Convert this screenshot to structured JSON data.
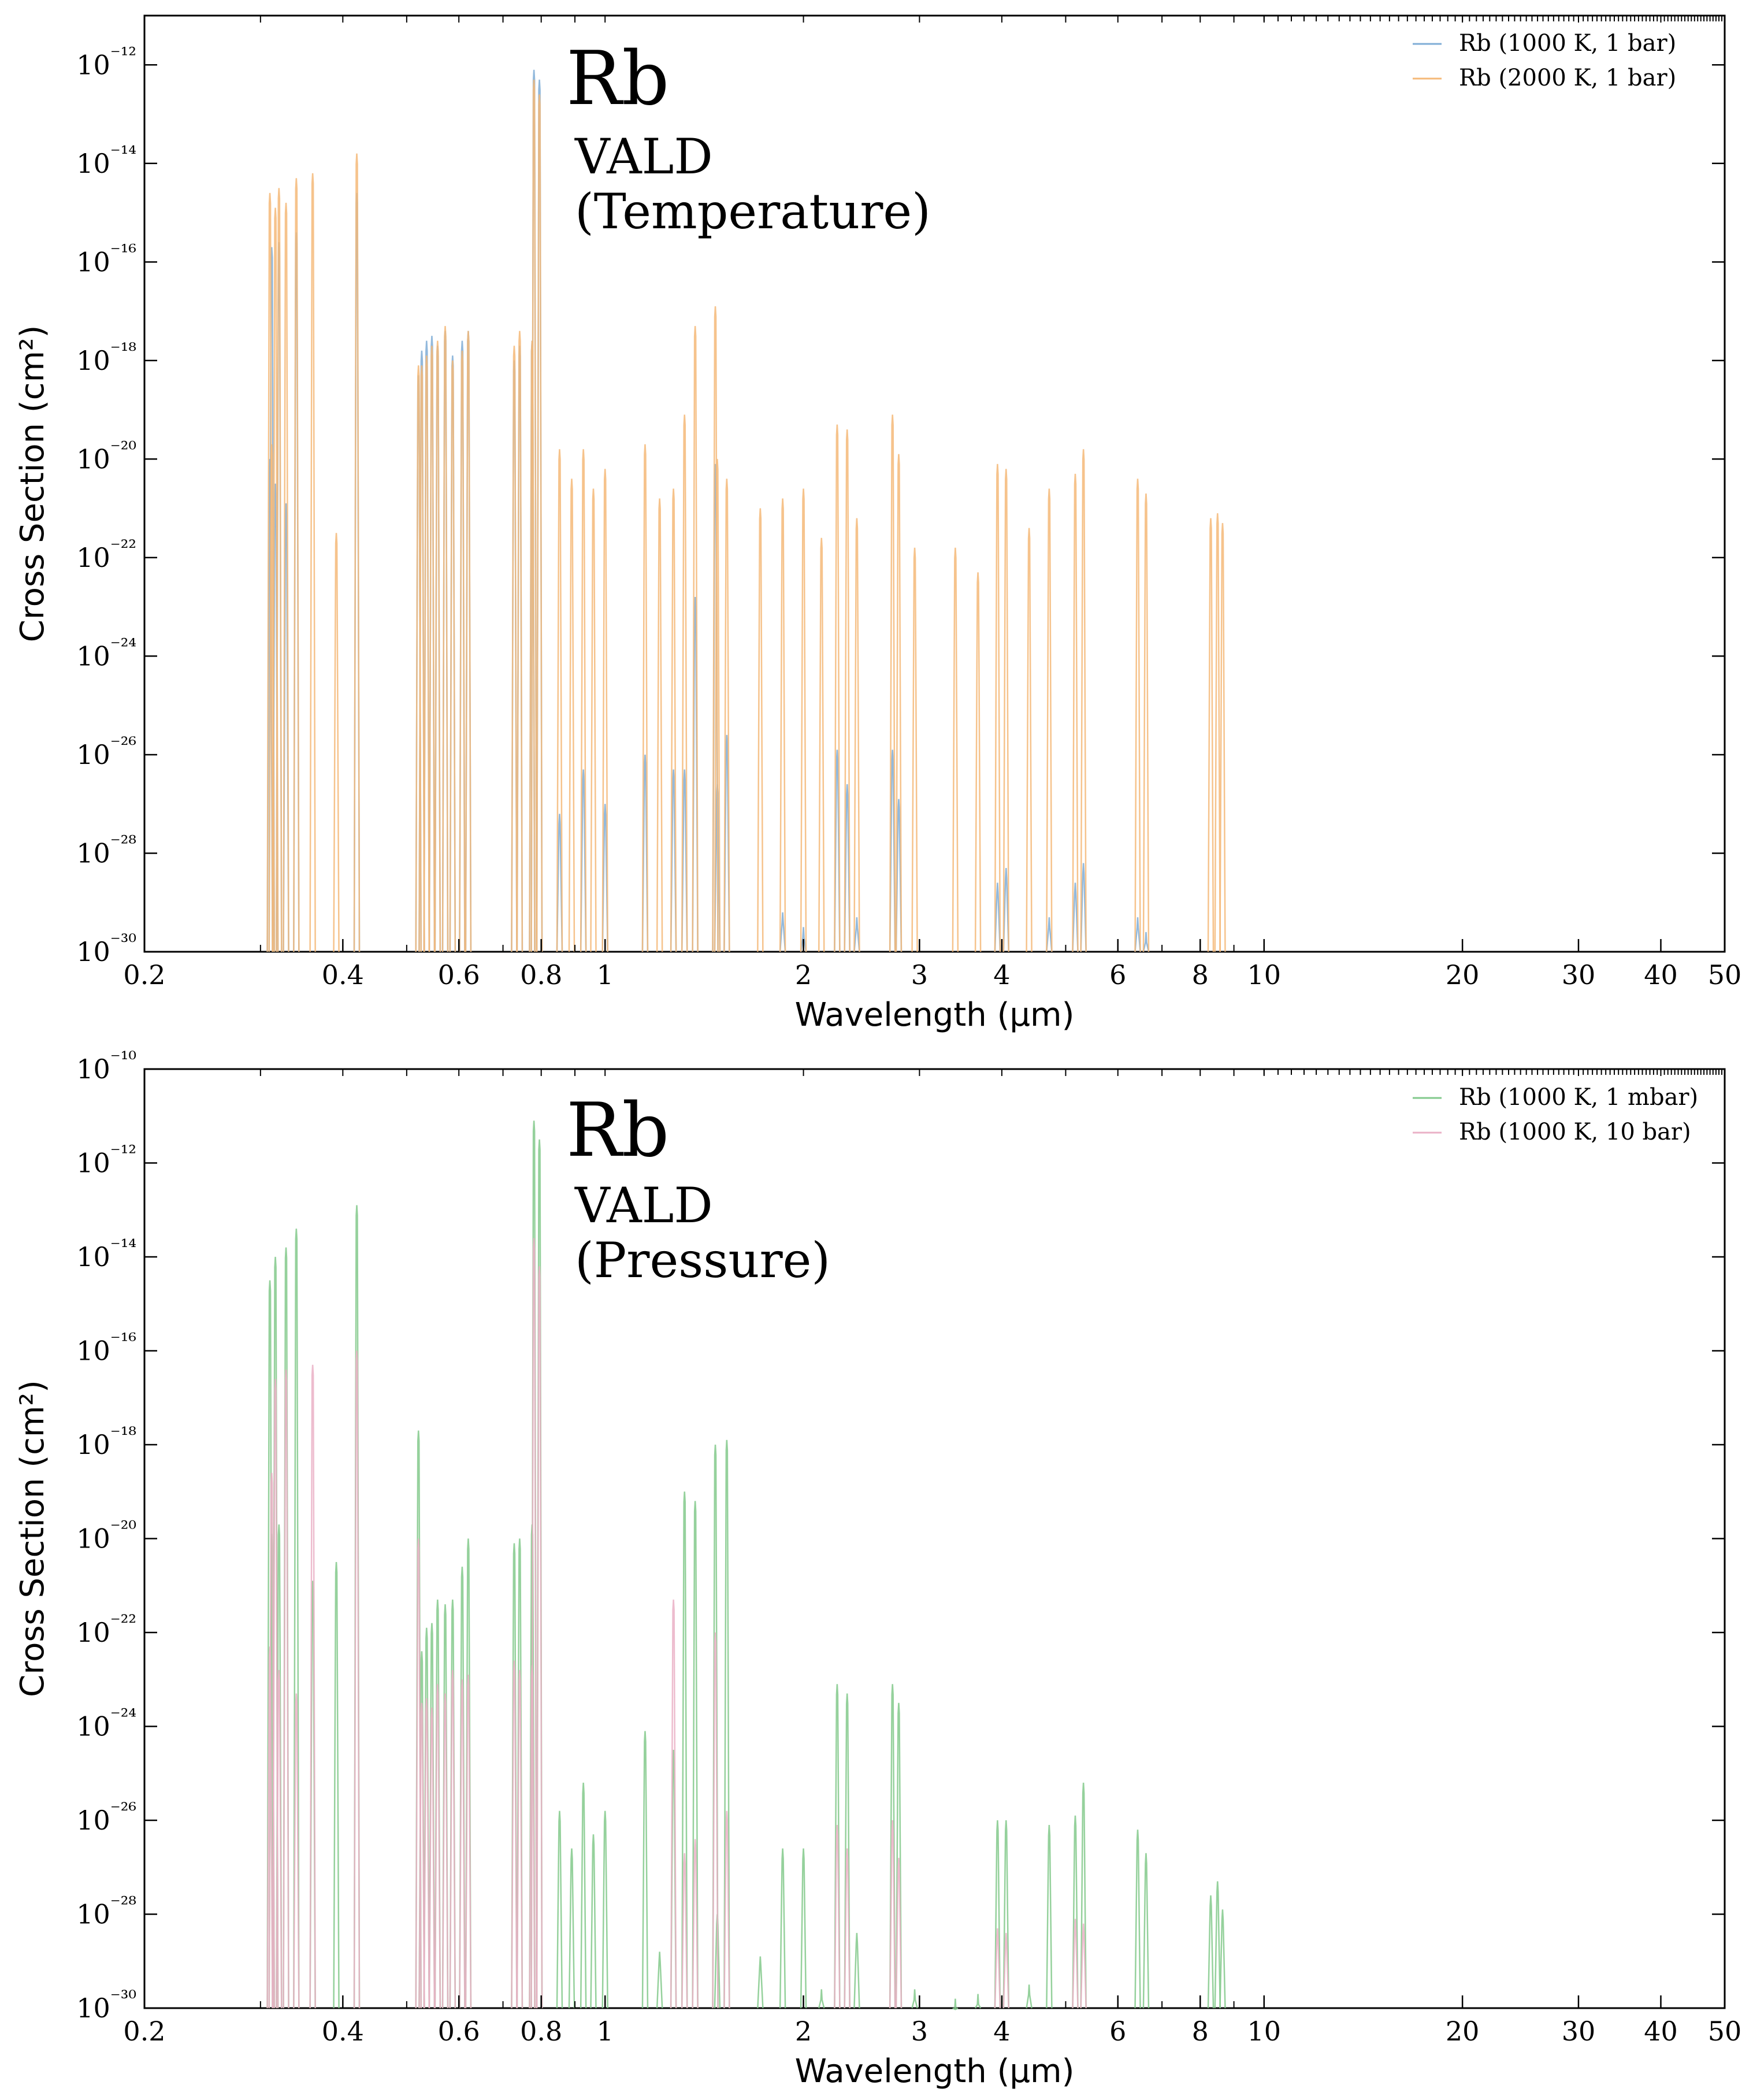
{
  "chart_data": [
    {
      "type": "line",
      "annotation": {
        "element": "Rb",
        "database": "VALD",
        "variation": "(Temperature)"
      },
      "xlabel": "Wavelength (μm)",
      "ylabel": "Cross Section (cm²)",
      "xscale": "log",
      "yscale": "log",
      "xlim": [
        0.2,
        50
      ],
      "ylim": [
        1e-30,
        1e-11
      ],
      "x_ticks": [
        "0.2",
        "0.4",
        "0.6",
        "0.8",
        "1",
        "2",
        "3",
        "4",
        "6",
        "8",
        "10",
        "20",
        "30",
        "40",
        "50"
      ],
      "y_ticks": [
        -30,
        -28,
        -26,
        -24,
        -22,
        -20,
        -18,
        -16,
        -14,
        -12
      ],
      "legend_position": "top-right",
      "grid": false,
      "series": [
        {
          "name": "Rb (1000 K, 1 bar)",
          "color": "#7fadd6",
          "lines": [
            [
              0.31,
              -20.0
            ],
            [
              0.312,
              -15.7
            ],
            [
              0.316,
              -20.5
            ],
            [
              0.32,
              -15.6
            ],
            [
              0.328,
              -20.9
            ],
            [
              0.34,
              -15.4
            ],
            [
              0.42,
              -14.6
            ],
            [
              0.521,
              -18.3
            ],
            [
              0.527,
              -17.8
            ],
            [
              0.536,
              -17.6
            ],
            [
              0.546,
              -17.5
            ],
            [
              0.557,
              -17.7
            ],
            [
              0.572,
              -17.4
            ],
            [
              0.587,
              -17.9
            ],
            [
              0.607,
              -17.6
            ],
            [
              0.62,
              -17.4
            ],
            [
              0.728,
              -18.0
            ],
            [
              0.742,
              -17.7
            ],
            [
              0.775,
              -17.6
            ],
            [
              0.78,
              -12.1
            ],
            [
              0.795,
              -12.3
            ],
            [
              0.853,
              -27.2
            ],
            [
              0.927,
              -26.3
            ],
            [
              1.0,
              -27.0
            ],
            [
              1.15,
              -26.0
            ],
            [
              1.27,
              -26.3
            ],
            [
              1.32,
              -26.3
            ],
            [
              1.37,
              -22.8
            ],
            [
              1.47,
              -20.1
            ],
            [
              1.48,
              -26.6
            ],
            [
              1.53,
              -25.6
            ],
            [
              1.86,
              -29.2
            ],
            [
              2.0,
              -29.5
            ],
            [
              2.25,
              -25.9
            ],
            [
              2.33,
              -26.6
            ],
            [
              2.41,
              -29.3
            ],
            [
              2.73,
              -25.9
            ],
            [
              2.79,
              -26.9
            ],
            [
              3.94,
              -28.6
            ],
            [
              4.06,
              -28.3
            ],
            [
              4.72,
              -29.3
            ],
            [
              5.17,
              -28.6
            ],
            [
              5.32,
              -28.2
            ],
            [
              6.43,
              -29.3
            ],
            [
              6.62,
              -29.6
            ]
          ]
        },
        {
          "name": "Rb (2000 K, 1 bar)",
          "color": "#f5b978",
          "lines": [
            [
              0.31,
              -14.6
            ],
            [
              0.312,
              -19.7
            ],
            [
              0.316,
              -14.9
            ],
            [
              0.32,
              -14.5
            ],
            [
              0.328,
              -14.8
            ],
            [
              0.34,
              -14.3
            ],
            [
              0.36,
              -14.2
            ],
            [
              0.391,
              -21.5
            ],
            [
              0.42,
              -13.8
            ],
            [
              0.521,
              -18.1
            ],
            [
              0.527,
              -18.1
            ],
            [
              0.536,
              -17.9
            ],
            [
              0.546,
              -17.7
            ],
            [
              0.557,
              -17.6
            ],
            [
              0.572,
              -17.3
            ],
            [
              0.587,
              -18.0
            ],
            [
              0.607,
              -17.8
            ],
            [
              0.62,
              -17.4
            ],
            [
              0.728,
              -17.7
            ],
            [
              0.742,
              -17.4
            ],
            [
              0.775,
              -17.6
            ],
            [
              0.78,
              -12.3
            ],
            [
              0.795,
              -12.6
            ],
            [
              0.853,
              -19.8
            ],
            [
              0.89,
              -20.4
            ],
            [
              0.927,
              -19.8
            ],
            [
              0.96,
              -20.6
            ],
            [
              1.0,
              -20.2
            ],
            [
              1.15,
              -19.7
            ],
            [
              1.21,
              -20.8
            ],
            [
              1.27,
              -20.6
            ],
            [
              1.32,
              -19.1
            ],
            [
              1.37,
              -17.3
            ],
            [
              1.47,
              -16.9
            ],
            [
              1.48,
              -20.0
            ],
            [
              1.53,
              -20.4
            ],
            [
              1.72,
              -21.0
            ],
            [
              1.86,
              -20.8
            ],
            [
              2.0,
              -20.6
            ],
            [
              2.13,
              -21.6
            ],
            [
              2.25,
              -19.3
            ],
            [
              2.33,
              -19.4
            ],
            [
              2.41,
              -21.2
            ],
            [
              2.73,
              -19.1
            ],
            [
              2.79,
              -19.9
            ],
            [
              2.95,
              -21.8
            ],
            [
              3.4,
              -21.8
            ],
            [
              3.68,
              -22.3
            ],
            [
              3.94,
              -20.1
            ],
            [
              4.06,
              -20.2
            ],
            [
              4.4,
              -21.4
            ],
            [
              4.72,
              -20.6
            ],
            [
              5.17,
              -20.3
            ],
            [
              5.32,
              -19.8
            ],
            [
              6.43,
              -20.4
            ],
            [
              6.62,
              -20.7
            ],
            [
              8.3,
              -21.2
            ],
            [
              8.5,
              -21.1
            ],
            [
              8.65,
              -21.3
            ]
          ]
        }
      ]
    },
    {
      "type": "line",
      "annotation": {
        "element": "Rb",
        "database": "VALD",
        "variation": "(Pressure)"
      },
      "xlabel": "Wavelength (μm)",
      "ylabel": "Cross Section (cm²)",
      "xscale": "log",
      "yscale": "log",
      "xlim": [
        0.2,
        50
      ],
      "ylim": [
        1e-30,
        1e-10
      ],
      "x_ticks": [
        "0.2",
        "0.4",
        "0.6",
        "0.8",
        "1",
        "2",
        "3",
        "4",
        "6",
        "8",
        "10",
        "20",
        "30",
        "40",
        "50"
      ],
      "y_ticks": [
        -30,
        -28,
        -26,
        -24,
        -22,
        -20,
        -18,
        -16,
        -14,
        -12,
        -10
      ],
      "legend_position": "top-right",
      "grid": false,
      "series": [
        {
          "name": "Rb (1000 K, 1 mbar)",
          "color": "#82c98b",
          "lines": [
            [
              0.31,
              -14.5
            ],
            [
              0.312,
              -19.9
            ],
            [
              0.316,
              -14.0
            ],
            [
              0.32,
              -19.7
            ],
            [
              0.328,
              -13.8
            ],
            [
              0.34,
              -13.4
            ],
            [
              0.36,
              -20.9
            ],
            [
              0.391,
              -20.5
            ],
            [
              0.42,
              -12.9
            ],
            [
              0.521,
              -17.7
            ],
            [
              0.527,
              -22.4
            ],
            [
              0.536,
              -21.9
            ],
            [
              0.546,
              -21.8
            ],
            [
              0.557,
              -21.3
            ],
            [
              0.572,
              -21.4
            ],
            [
              0.587,
              -21.3
            ],
            [
              0.607,
              -20.6
            ],
            [
              0.62,
              -20.0
            ],
            [
              0.728,
              -20.1
            ],
            [
              0.742,
              -20.0
            ],
            [
              0.775,
              -19.7
            ],
            [
              0.78,
              -11.1
            ],
            [
              0.795,
              -11.5
            ],
            [
              0.853,
              -25.8
            ],
            [
              0.89,
              -26.6
            ],
            [
              0.927,
              -25.2
            ],
            [
              0.96,
              -26.3
            ],
            [
              1.0,
              -25.8
            ],
            [
              1.15,
              -24.1
            ],
            [
              1.21,
              -28.8
            ],
            [
              1.27,
              -24.5
            ],
            [
              1.32,
              -19.0
            ],
            [
              1.37,
              -19.2
            ],
            [
              1.47,
              -18.0
            ],
            [
              1.48,
              -28.0
            ],
            [
              1.53,
              -17.9
            ],
            [
              1.72,
              -28.9
            ],
            [
              1.86,
              -26.6
            ],
            [
              2.0,
              -26.6
            ],
            [
              2.13,
              -29.6
            ],
            [
              2.25,
              -23.1
            ],
            [
              2.33,
              -23.3
            ],
            [
              2.41,
              -28.4
            ],
            [
              2.73,
              -23.1
            ],
            [
              2.79,
              -23.5
            ],
            [
              2.95,
              -29.6
            ],
            [
              3.4,
              -29.8
            ],
            [
              3.68,
              -29.7
            ],
            [
              3.94,
              -26.0
            ],
            [
              4.06,
              -26.0
            ],
            [
              4.4,
              -29.5
            ],
            [
              4.72,
              -26.1
            ],
            [
              5.17,
              -25.9
            ],
            [
              5.32,
              -25.2
            ],
            [
              6.43,
              -26.2
            ],
            [
              6.62,
              -26.7
            ],
            [
              8.3,
              -27.6
            ],
            [
              8.5,
              -27.3
            ],
            [
              8.65,
              -27.9
            ]
          ]
        },
        {
          "name": "Rb (1000 K, 10 bar)",
          "color": "#eab0c6",
          "lines": [
            [
              0.31,
              -22.3
            ],
            [
              0.312,
              -18.6
            ],
            [
              0.316,
              -16.6
            ],
            [
              0.32,
              -22.8
            ],
            [
              0.328,
              -16.4
            ],
            [
              0.34,
              -23.3
            ],
            [
              0.36,
              -16.3
            ],
            [
              0.42,
              -16.0
            ],
            [
              0.521,
              -20.0
            ],
            [
              0.527,
              -23.5
            ],
            [
              0.536,
              -23.4
            ],
            [
              0.546,
              -23.6
            ],
            [
              0.557,
              -23.1
            ],
            [
              0.572,
              -23.3
            ],
            [
              0.587,
              -22.8
            ],
            [
              0.607,
              -23.0
            ],
            [
              0.62,
              -22.9
            ],
            [
              0.728,
              -22.6
            ],
            [
              0.742,
              -22.8
            ],
            [
              0.775,
              -22.7
            ],
            [
              0.78,
              -13.6
            ],
            [
              0.795,
              -14.2
            ],
            [
              1.27,
              -21.3
            ],
            [
              1.32,
              -26.7
            ],
            [
              1.37,
              -26.4
            ],
            [
              1.47,
              -22.0
            ],
            [
              1.53,
              -25.8
            ],
            [
              2.25,
              -26.1
            ],
            [
              2.33,
              -26.6
            ],
            [
              2.73,
              -26.0
            ],
            [
              2.79,
              -26.8
            ],
            [
              3.94,
              -28.3
            ],
            [
              4.06,
              -28.4
            ],
            [
              5.17,
              -28.1
            ],
            [
              5.32,
              -28.2
            ]
          ]
        }
      ]
    }
  ]
}
